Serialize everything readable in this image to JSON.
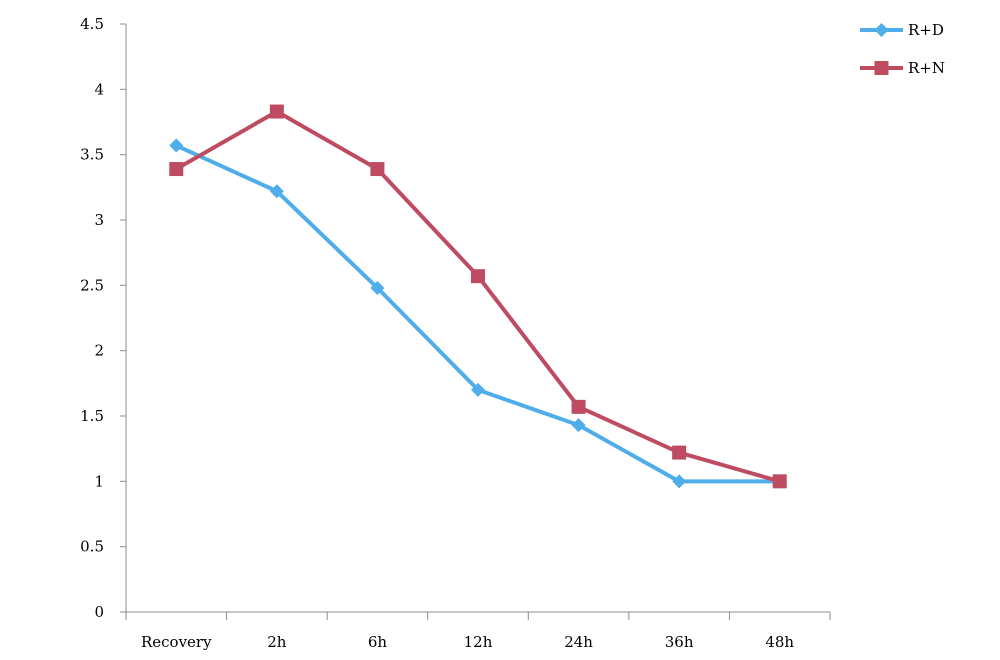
{
  "chart_data": {
    "type": "line",
    "title": "",
    "xlabel": "",
    "ylabel": "",
    "categories": [
      "Recovery",
      "2h",
      "6h",
      "12h",
      "24h",
      "36h",
      "48h"
    ],
    "ylim": [
      0,
      4.5
    ],
    "yticks": [
      "0",
      "0.5",
      "1",
      "1.5",
      "2",
      "2.5",
      "3",
      "3.5",
      "4",
      "4.5"
    ],
    "grid": false,
    "legend_position": "top-right",
    "series": [
      {
        "name": "R+D",
        "color": "#4FADEA",
        "marker": "diamond",
        "values": [
          3.57,
          3.22,
          2.48,
          1.7,
          1.43,
          1.0,
          1.0
        ]
      },
      {
        "name": "R+N",
        "color": "#BE4B62",
        "marker": "square",
        "values": [
          3.39,
          3.83,
          3.39,
          2.57,
          1.57,
          1.22,
          1.0
        ]
      }
    ]
  }
}
